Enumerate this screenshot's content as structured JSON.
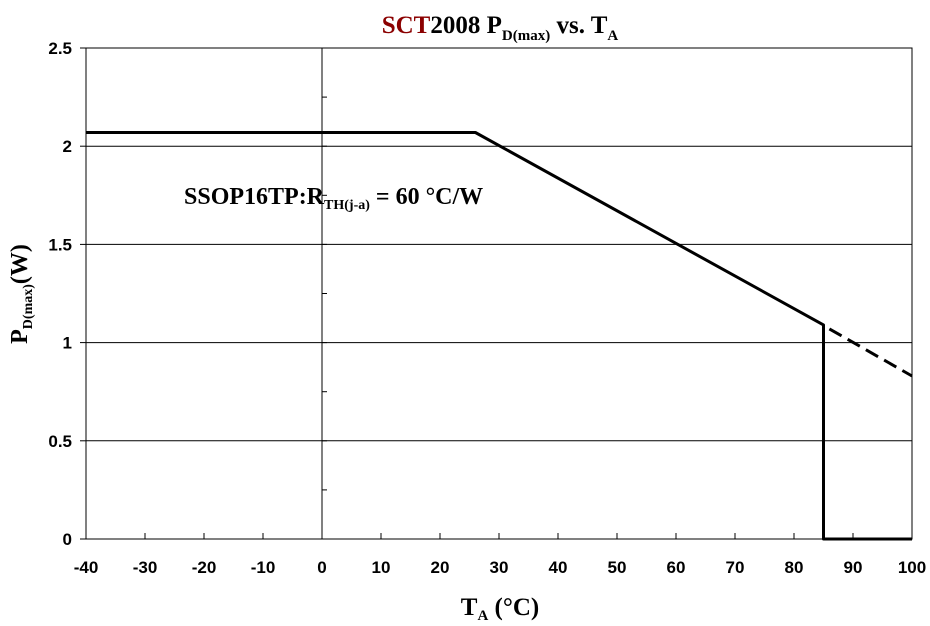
{
  "chart_data": {
    "type": "line",
    "title": {
      "brand": "SCT",
      "rest": "2008 P",
      "sub": "D(max)",
      "mid": " vs. T",
      "sub2": "A",
      "brand_color": "#8b0000"
    },
    "xlabel": {
      "main": "T",
      "sub": "A",
      "unit": " (°C)"
    },
    "ylabel": {
      "main": "P",
      "sub": "D(max)",
      "unit": "(W)"
    },
    "annotation": {
      "pre": "SSOP16TP:R",
      "sub": "TH(j-a)",
      "post": " = 60 °C/W"
    },
    "xlim": [
      -40,
      100
    ],
    "ylim": [
      0,
      2.5
    ],
    "x_ticks": [
      "-40",
      "-30",
      "-20",
      "-10",
      "0",
      "10",
      "20",
      "30",
      "40",
      "50",
      "60",
      "70",
      "80",
      "90",
      "100"
    ],
    "y_ticks": [
      "0",
      "0.5",
      "1",
      "1.5",
      "2",
      "2.5"
    ],
    "grid": "horizontal",
    "series": [
      {
        "style": "solid",
        "points": [
          [
            -40,
            2.07
          ],
          [
            26,
            2.07
          ],
          [
            85,
            1.09
          ],
          [
            85,
            0.0
          ],
          [
            86,
            0.0
          ],
          [
            100,
            0.0
          ]
        ]
      },
      {
        "style": "dotted",
        "points": [
          [
            0,
            2.07
          ],
          [
            26,
            2.07
          ]
        ]
      },
      {
        "style": "dashed",
        "points": [
          [
            86,
            1.07
          ],
          [
            100,
            0.83
          ]
        ]
      }
    ]
  }
}
